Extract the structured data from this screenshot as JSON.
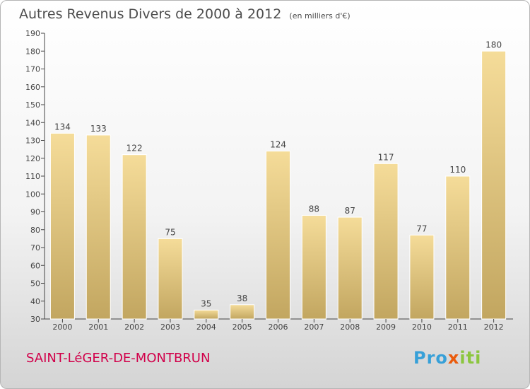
{
  "header": {
    "title": "Autres Revenus Divers de 2000 à 2012",
    "subtitle": "(en milliers d'€)"
  },
  "footer": {
    "commune": "SAINT-LéGER-DE-MONTBRUN",
    "logo": {
      "main": "Pro",
      "x": "x",
      "end": "iti"
    }
  },
  "colors": {
    "bar_top": "#f5dc99",
    "bar_bottom": "#c2a660",
    "commune_text": "#d1004a",
    "logo_blue": "#37a0d8",
    "logo_orange": "#ea5b0c",
    "logo_green": "#8cc63f"
  },
  "chart_data": {
    "type": "bar",
    "title": "Autres Revenus Divers de 2000 à 2012",
    "subtitle": "(en milliers d'€)",
    "categories": [
      "2000",
      "2001",
      "2002",
      "2003",
      "2004",
      "2005",
      "2006",
      "2007",
      "2008",
      "2009",
      "2010",
      "2011",
      "2012"
    ],
    "values": [
      134,
      133,
      122,
      75,
      35,
      38,
      124,
      88,
      87,
      117,
      77,
      110,
      180
    ],
    "ylim": [
      30,
      190
    ],
    "yticks": [
      30,
      40,
      50,
      60,
      70,
      80,
      90,
      100,
      110,
      120,
      130,
      140,
      150,
      160,
      170,
      180,
      190
    ],
    "grid": false,
    "data_labels": true,
    "xlabel": "",
    "ylabel": ""
  }
}
